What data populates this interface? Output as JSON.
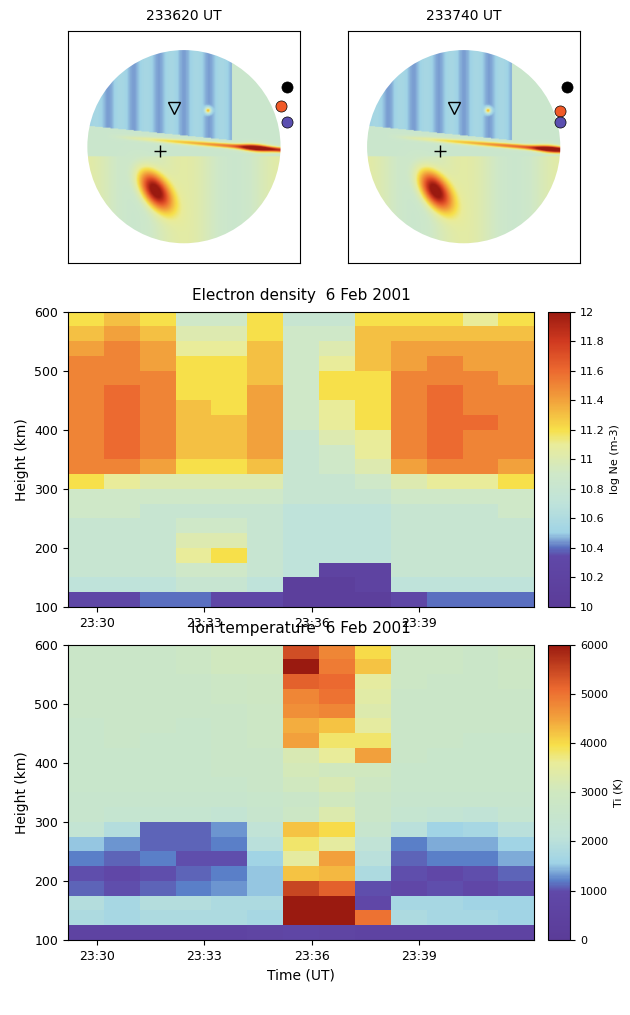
{
  "chart_data": [
    {
      "type": "image",
      "title": "233620 UT"
    },
    {
      "type": "image",
      "title": "233740 UT"
    },
    {
      "type": "heatmap",
      "title": "Electron density  6 Feb 2001",
      "y_label": "Height (km)",
      "x_edges": [
        29.2,
        30.2,
        31.2,
        32.2,
        33.2,
        34.2,
        35.2,
        36.2,
        37.2,
        38.2,
        39.2,
        40.2,
        41.2,
        42.2
      ],
      "y_edges": [
        100,
        125,
        150,
        175,
        200,
        225,
        250,
        275,
        300,
        325,
        350,
        375,
        400,
        425,
        450,
        475,
        500,
        525,
        550,
        575,
        600
      ],
      "xlim": [
        29.2,
        42.2
      ],
      "ylim": [
        100,
        600
      ],
      "xticks": [
        {
          "value": 30,
          "label": "23:30"
        },
        {
          "value": 33,
          "label": "23:33"
        },
        {
          "value": 36,
          "label": "23:36"
        },
        {
          "value": 39,
          "label": "23:39"
        }
      ],
      "yticks": [
        100,
        200,
        300,
        400,
        500,
        600
      ],
      "cells": [
        [
          10.3,
          10.3,
          10.4,
          10.4,
          10.3,
          10.3,
          10.1,
          10.1,
          10.1,
          10.3,
          10.4,
          10.4,
          10.4
        ],
        [
          10.7,
          10.7,
          10.7,
          10.8,
          10.8,
          10.7,
          10.1,
          10.1,
          10.2,
          10.7,
          10.7,
          10.7,
          10.7
        ],
        [
          10.8,
          10.8,
          10.8,
          10.9,
          10.9,
          10.8,
          10.7,
          10.2,
          10.2,
          10.8,
          10.8,
          10.8,
          10.8
        ],
        [
          10.8,
          10.8,
          10.8,
          11.1,
          11.2,
          10.8,
          10.7,
          10.7,
          10.7,
          10.8,
          10.8,
          10.8,
          10.8
        ],
        [
          10.8,
          10.8,
          10.8,
          11.0,
          11.0,
          10.8,
          10.7,
          10.7,
          10.7,
          10.8,
          10.8,
          10.8,
          10.8
        ],
        [
          10.8,
          10.8,
          10.8,
          10.9,
          10.9,
          10.8,
          10.7,
          10.7,
          10.7,
          10.8,
          10.8,
          10.8,
          10.8
        ],
        [
          10.9,
          10.9,
          10.8,
          10.8,
          10.8,
          10.8,
          10.7,
          10.7,
          10.7,
          10.8,
          10.8,
          10.8,
          10.9
        ],
        [
          10.9,
          10.9,
          10.9,
          10.9,
          10.9,
          10.9,
          10.8,
          10.8,
          10.8,
          10.9,
          10.9,
          10.9,
          10.9
        ],
        [
          11.2,
          11.1,
          11.0,
          11.0,
          11.0,
          11.0,
          10.8,
          10.8,
          10.9,
          11.0,
          11.1,
          11.1,
          11.2
        ],
        [
          11.5,
          11.5,
          11.4,
          11.2,
          11.2,
          11.3,
          10.8,
          10.9,
          11.0,
          11.4,
          11.5,
          11.5,
          11.4
        ],
        [
          11.5,
          11.6,
          11.5,
          11.3,
          11.3,
          11.4,
          10.8,
          10.9,
          11.1,
          11.5,
          11.6,
          11.5,
          11.5
        ],
        [
          11.5,
          11.6,
          11.5,
          11.3,
          11.3,
          11.4,
          10.8,
          11.0,
          11.1,
          11.5,
          11.6,
          11.5,
          11.5
        ],
        [
          11.5,
          11.6,
          11.5,
          11.3,
          11.3,
          11.4,
          10.9,
          11.1,
          11.2,
          11.5,
          11.6,
          11.6,
          11.5
        ],
        [
          11.5,
          11.6,
          11.5,
          11.3,
          11.2,
          11.4,
          10.9,
          11.1,
          11.2,
          11.5,
          11.6,
          11.5,
          11.5
        ],
        [
          11.5,
          11.6,
          11.5,
          11.2,
          11.2,
          11.4,
          10.9,
          11.2,
          11.2,
          11.5,
          11.6,
          11.5,
          11.5
        ],
        [
          11.5,
          11.5,
          11.5,
          11.2,
          11.2,
          11.3,
          10.9,
          11.2,
          11.2,
          11.5,
          11.5,
          11.5,
          11.4
        ],
        [
          11.5,
          11.5,
          11.4,
          11.2,
          11.2,
          11.3,
          10.9,
          11.1,
          11.3,
          11.4,
          11.5,
          11.4,
          11.4
        ],
        [
          11.4,
          11.5,
          11.4,
          11.1,
          11.1,
          11.3,
          10.9,
          11.0,
          11.3,
          11.4,
          11.4,
          11.4,
          11.4
        ],
        [
          11.3,
          11.4,
          11.3,
          11.0,
          11.0,
          11.2,
          10.9,
          10.9,
          11.3,
          11.3,
          11.3,
          11.3,
          11.3
        ],
        [
          11.2,
          11.3,
          11.2,
          10.9,
          10.9,
          11.2,
          10.8,
          10.8,
          11.2,
          11.2,
          11.2,
          11.1,
          11.2
        ]
      ],
      "colorbar_label": "log Ne (m-3)",
      "colorbar_range": [
        10,
        12
      ],
      "colorbar_ticks": [
        10,
        10.2,
        10.4,
        10.6,
        10.8,
        11,
        11.2,
        11.4,
        11.6,
        11.8,
        12
      ]
    },
    {
      "type": "heatmap",
      "title": "Ion temperature  6 Feb 2001",
      "x_label": "Time (UT)",
      "y_label": "Height (km)",
      "x_edges": [
        29.2,
        30.2,
        31.2,
        32.2,
        33.2,
        34.2,
        35.2,
        36.2,
        37.2,
        38.2,
        39.2,
        40.2,
        41.2,
        42.2
      ],
      "y_edges": [
        100,
        125,
        150,
        175,
        200,
        225,
        250,
        275,
        300,
        325,
        350,
        375,
        400,
        425,
        450,
        475,
        500,
        525,
        550,
        575,
        600
      ],
      "xlim": [
        29.2,
        42.2
      ],
      "ylim": [
        100,
        600
      ],
      "xticks": [
        {
          "value": 30,
          "label": "23:30"
        },
        {
          "value": 33,
          "label": "23:33"
        },
        {
          "value": 36,
          "label": "23:36"
        },
        {
          "value": 39,
          "label": "23:39"
        }
      ],
      "yticks": [
        100,
        200,
        300,
        400,
        500,
        600
      ],
      "cells": [
        [
          600,
          600,
          600,
          600,
          600,
          700,
          800,
          700,
          600,
          600,
          600,
          600,
          600
        ],
        [
          1800,
          1700,
          1800,
          1800,
          1800,
          1700,
          6000,
          6000,
          5000,
          1800,
          1700,
          1700,
          1600
        ],
        [
          1900,
          1700,
          1900,
          1900,
          1800,
          1800,
          6000,
          6000,
          900,
          1700,
          1700,
          1600,
          1600
        ],
        [
          1100,
          1000,
          1100,
          1200,
          1300,
          1500,
          5500,
          5200,
          1000,
          900,
          1000,
          900,
          1000
        ],
        [
          1000,
          900,
          1000,
          1100,
          1200,
          1500,
          4200,
          4300,
          1800,
          1000,
          900,
          1000,
          1100
        ],
        [
          1200,
          1100,
          1200,
          1000,
          1000,
          1600,
          3500,
          4500,
          2000,
          1100,
          1200,
          1200,
          1400
        ],
        [
          1500,
          1300,
          1100,
          1100,
          1200,
          2000,
          3800,
          3500,
          2200,
          1200,
          1400,
          1400,
          1600
        ],
        [
          2300,
          1900,
          1100,
          1100,
          1300,
          2200,
          4200,
          4000,
          2500,
          2000,
          1600,
          1700,
          2000
        ],
        [
          2500,
          2400,
          2400,
          2400,
          2300,
          2500,
          2800,
          3300,
          2700,
          2400,
          2300,
          2200,
          2400
        ],
        [
          2500,
          2500,
          2500,
          2500,
          2500,
          2600,
          2700,
          3000,
          2700,
          2500,
          2500,
          2500,
          2500
        ],
        [
          2600,
          2600,
          2600,
          2600,
          2600,
          2700,
          3000,
          3200,
          2900,
          2600,
          2600,
          2600,
          2600
        ],
        [
          2600,
          2600,
          2600,
          2600,
          2700,
          2700,
          3100,
          3000,
          3000,
          2600,
          2600,
          2600,
          2600
        ],
        [
          2600,
          2600,
          2600,
          2600,
          2700,
          2700,
          3200,
          3600,
          4500,
          2700,
          2600,
          2600,
          2600
        ],
        [
          2600,
          2700,
          2600,
          2600,
          2700,
          2800,
          4500,
          3800,
          3800,
          2700,
          2700,
          2600,
          2600
        ],
        [
          2600,
          2700,
          2700,
          2600,
          2700,
          2800,
          4400,
          4200,
          3500,
          2700,
          2700,
          2700,
          2700
        ],
        [
          2700,
          2700,
          2700,
          2700,
          2700,
          2800,
          4700,
          4800,
          3300,
          2700,
          2700,
          2700,
          2700
        ],
        [
          2700,
          2700,
          2700,
          2700,
          2800,
          2900,
          4800,
          5000,
          3400,
          2700,
          2700,
          2700,
          2700
        ],
        [
          2700,
          2700,
          2700,
          2700,
          2800,
          2900,
          5200,
          5100,
          3500,
          2800,
          2700,
          2700,
          2800
        ],
        [
          2700,
          2700,
          2700,
          2800,
          3000,
          3000,
          6000,
          4900,
          4200,
          2800,
          2800,
          2700,
          2800
        ],
        [
          2700,
          2700,
          2700,
          2800,
          3000,
          3000,
          5400,
          4800,
          4000,
          2800,
          2800,
          2700,
          2900
        ]
      ],
      "colorbar_label": "Ti (K)",
      "colorbar_range": [
        0,
        6000
      ],
      "colorbar_ticks": [
        0,
        1000,
        2000,
        3000,
        4000,
        5000,
        6000
      ]
    }
  ]
}
